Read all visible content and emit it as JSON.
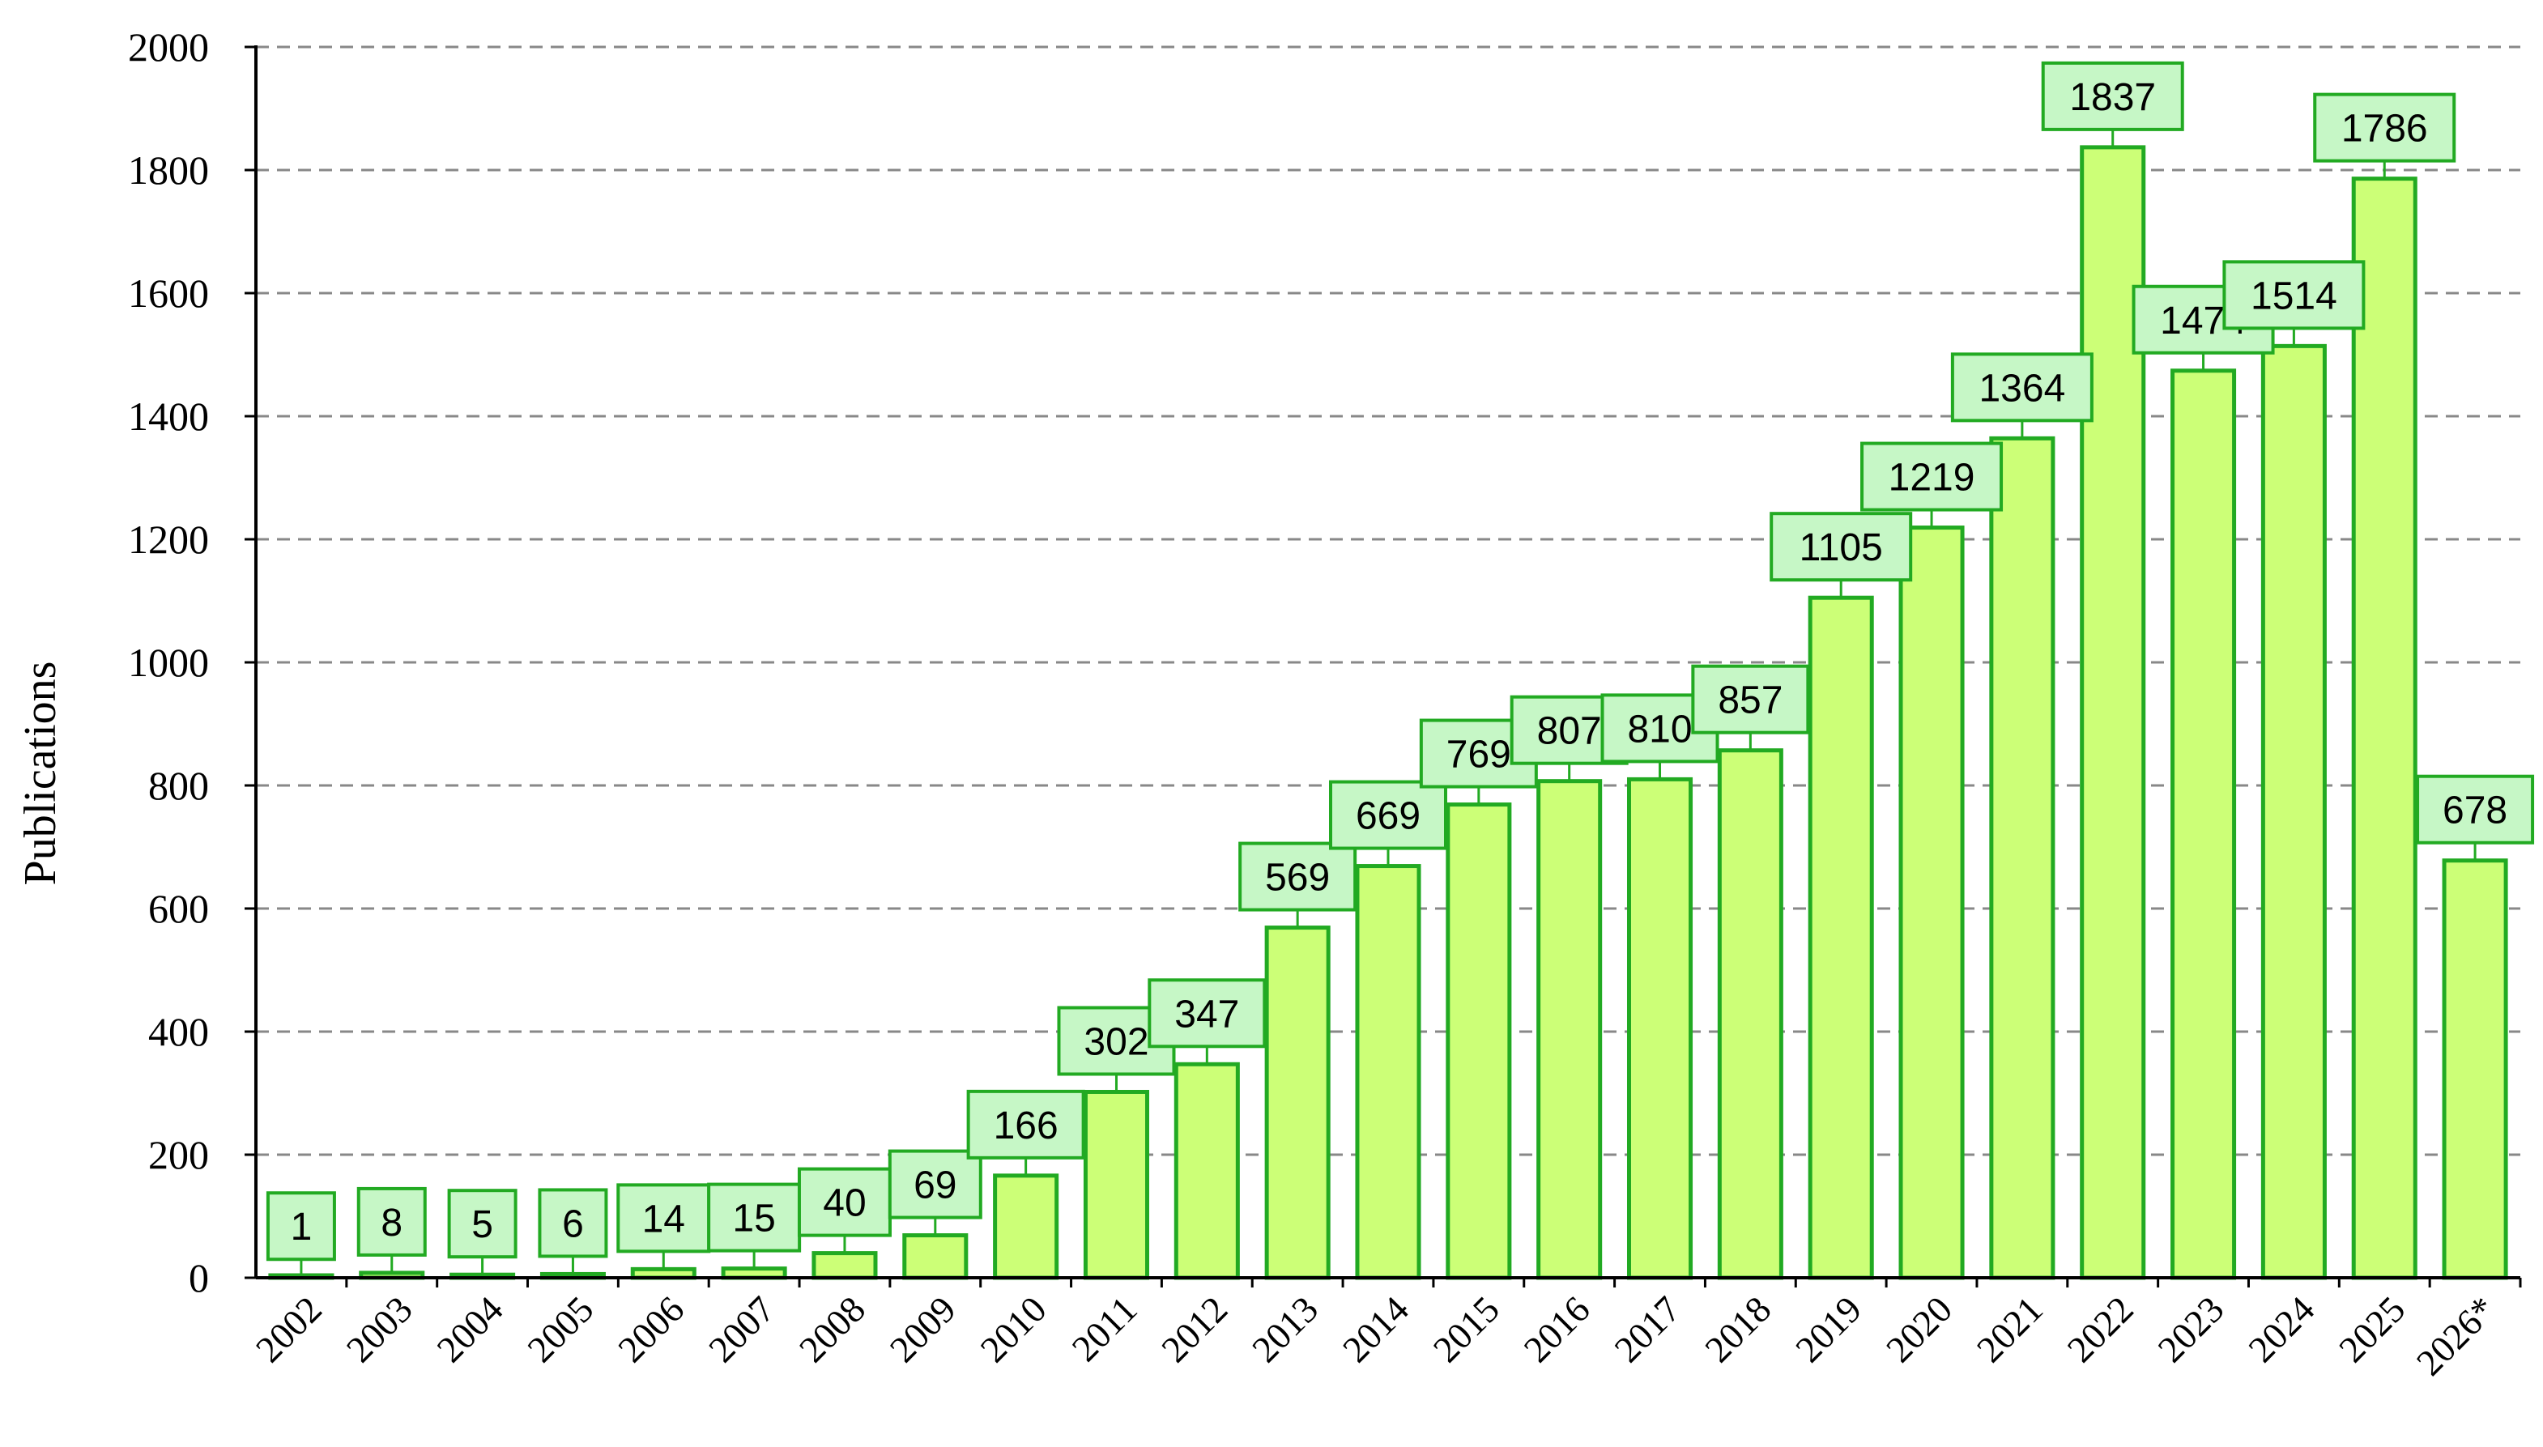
{
  "chart_data": {
    "type": "bar",
    "title": "",
    "xlabel": "",
    "ylabel": "Publications",
    "ylim": [
      0,
      2000
    ],
    "yticks": [
      0,
      200,
      400,
      600,
      800,
      1000,
      1200,
      1400,
      1600,
      1800,
      2000
    ],
    "grid": "horizontal-dashed",
    "legend": "none",
    "categories": [
      "2002",
      "2003",
      "2004",
      "2005",
      "2006",
      "2007",
      "2008",
      "2009",
      "2010",
      "2011",
      "2012",
      "2013",
      "2014",
      "2015",
      "2016",
      "2017",
      "2018",
      "2019",
      "2020",
      "2021",
      "2022",
      "2023",
      "2024",
      "2025",
      "2026*"
    ],
    "values": [
      1,
      8,
      5,
      6,
      14,
      15,
      40,
      69,
      166,
      302,
      347,
      569,
      669,
      769,
      807,
      810,
      857,
      1105,
      1219,
      1364,
      1837,
      1474,
      1514,
      1786,
      678
    ],
    "colors": {
      "bar_fill": "#ccff77",
      "bar_stroke": "#22aa22",
      "label_fill": "#c6f7c6",
      "label_stroke": "#22aa22",
      "grid": "#888888"
    }
  }
}
